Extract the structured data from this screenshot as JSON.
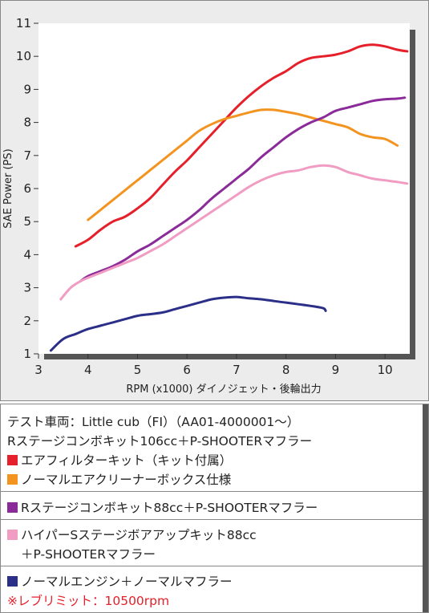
{
  "chart_data": {
    "type": "line",
    "xlabel": "RPM (x1000) ダイノジェット・後輪出力",
    "ylabel": "SAE Power (PS)",
    "xlim": [
      3,
      10.5
    ],
    "ylim": [
      1,
      11
    ],
    "xticks": [
      "3",
      "4",
      "5",
      "6",
      "7",
      "8",
      "9",
      "10"
    ],
    "yticks": [
      "1",
      "2",
      "3",
      "4",
      "5",
      "6",
      "7",
      "8",
      "9",
      "10",
      "11"
    ],
    "grid": false,
    "series": [
      {
        "key": "red",
        "color": "#e5202b",
        "x": [
          3.75,
          4,
          4.25,
          4.5,
          4.75,
          5,
          5.25,
          5.5,
          5.75,
          6,
          6.25,
          6.5,
          6.75,
          7,
          7.25,
          7.5,
          7.75,
          8,
          8.25,
          8.5,
          8.75,
          9,
          9.25,
          9.5,
          9.75,
          10,
          10.25,
          10.45
        ],
        "y": [
          4.25,
          4.45,
          4.75,
          5.0,
          5.15,
          5.4,
          5.7,
          6.1,
          6.5,
          6.85,
          7.25,
          7.65,
          8.05,
          8.45,
          8.8,
          9.1,
          9.35,
          9.55,
          9.8,
          9.95,
          10.0,
          10.05,
          10.15,
          10.3,
          10.35,
          10.3,
          10.2,
          10.15
        ]
      },
      {
        "key": "orange",
        "color": "#f39420",
        "x": [
          4,
          4.25,
          4.5,
          4.75,
          5,
          5.25,
          5.5,
          5.75,
          6,
          6.25,
          6.5,
          6.75,
          7,
          7.25,
          7.5,
          7.75,
          8,
          8.25,
          8.5,
          8.75,
          9,
          9.25,
          9.5,
          9.75,
          10,
          10.25
        ],
        "y": [
          5.05,
          5.35,
          5.65,
          5.95,
          6.25,
          6.55,
          6.85,
          7.15,
          7.45,
          7.75,
          7.95,
          8.1,
          8.2,
          8.3,
          8.38,
          8.38,
          8.32,
          8.25,
          8.15,
          8.05,
          7.95,
          7.85,
          7.65,
          7.55,
          7.5,
          7.3
        ]
      },
      {
        "key": "purple",
        "color": "#8a2b99",
        "x": [
          3.85,
          4,
          4.25,
          4.5,
          4.75,
          5,
          5.25,
          5.5,
          5.75,
          6,
          6.25,
          6.5,
          6.75,
          7,
          7.25,
          7.5,
          7.75,
          8,
          8.25,
          8.5,
          8.75,
          9,
          9.25,
          9.5,
          9.75,
          10,
          10.25,
          10.4
        ],
        "y": [
          3.2,
          3.35,
          3.5,
          3.65,
          3.85,
          4.1,
          4.3,
          4.55,
          4.8,
          5.05,
          5.35,
          5.7,
          6.0,
          6.3,
          6.6,
          6.95,
          7.25,
          7.55,
          7.8,
          8.0,
          8.15,
          8.35,
          8.45,
          8.55,
          8.65,
          8.7,
          8.72,
          8.75
        ]
      },
      {
        "key": "pink",
        "color": "#f09cc3",
        "x": [
          3.45,
          3.65,
          3.85,
          4,
          4.25,
          4.5,
          4.75,
          5,
          5.25,
          5.5,
          5.75,
          6,
          6.25,
          6.5,
          6.75,
          7,
          7.25,
          7.5,
          7.75,
          8,
          8.25,
          8.5,
          8.75,
          9,
          9.25,
          9.5,
          9.75,
          10,
          10.25,
          10.45
        ],
        "y": [
          2.65,
          3.0,
          3.2,
          3.3,
          3.45,
          3.6,
          3.75,
          3.9,
          4.1,
          4.3,
          4.55,
          4.8,
          5.05,
          5.3,
          5.55,
          5.8,
          6.05,
          6.25,
          6.4,
          6.5,
          6.55,
          6.65,
          6.7,
          6.65,
          6.5,
          6.4,
          6.3,
          6.25,
          6.2,
          6.15
        ]
      },
      {
        "key": "navy",
        "color": "#2b2f88",
        "x": [
          3.25,
          3.5,
          3.75,
          4,
          4.25,
          4.5,
          4.75,
          5,
          5.25,
          5.5,
          5.75,
          6,
          6.25,
          6.5,
          6.75,
          7,
          7.25,
          7.5,
          7.75,
          8,
          8.25,
          8.5,
          8.75,
          8.8
        ],
        "y": [
          1.1,
          1.45,
          1.6,
          1.75,
          1.85,
          1.95,
          2.05,
          2.15,
          2.2,
          2.25,
          2.35,
          2.45,
          2.55,
          2.65,
          2.7,
          2.72,
          2.68,
          2.65,
          2.6,
          2.55,
          2.5,
          2.45,
          2.38,
          2.3
        ]
      }
    ]
  },
  "legend": {
    "test_vehicle": "テスト車両：Little cub（FI）（AA01-4000001～）",
    "group1_header": "Rステージコンボキット106cc＋P-SHOOTERマフラー",
    "red_label": "エアフィルターキット（キット付属）",
    "orange_label": "ノーマルエアクリーナーボックス仕様",
    "purple_label": "Rステージコンボキット88cc＋P-SHOOTERマフラー",
    "pink_label_1": "ハイパーSステージボアアップキット88cc",
    "pink_label_2": "＋P-SHOOTERマフラー",
    "navy_label": "ノーマルエンジン＋ノーマルマフラー",
    "rev_limit": "※レブリミット：10500rpm"
  },
  "colors": {
    "red": "#e5202b",
    "orange": "#f39420",
    "purple": "#8a2b99",
    "pink": "#f09cc3",
    "navy": "#2b2f88"
  }
}
